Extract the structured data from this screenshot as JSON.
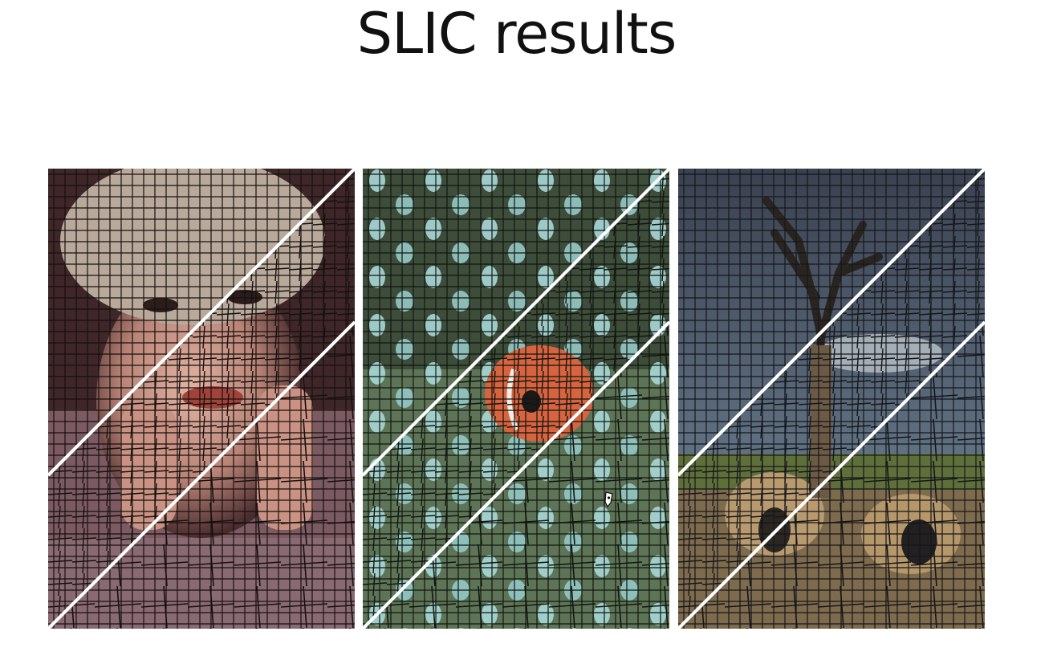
{
  "slide": {
    "title": "SLIC results"
  },
  "panels": [
    {
      "subject": "portrait-woman-hat",
      "colors": {
        "base": "#5a3a3c",
        "accent": "#c99a8a",
        "dark": "#2a1a1c"
      }
    },
    {
      "subject": "clownfish-anemone",
      "colors": {
        "base": "#4f6048",
        "accent": "#9cd0cf",
        "dark": "#2d3b2d"
      }
    },
    {
      "subject": "tree-adobe-huts",
      "colors": {
        "base": "#4c5866",
        "accent": "#b89a6e",
        "dark": "#2a2d2f"
      }
    }
  ],
  "cursor": {
    "icon": "pen-cursor-icon"
  }
}
